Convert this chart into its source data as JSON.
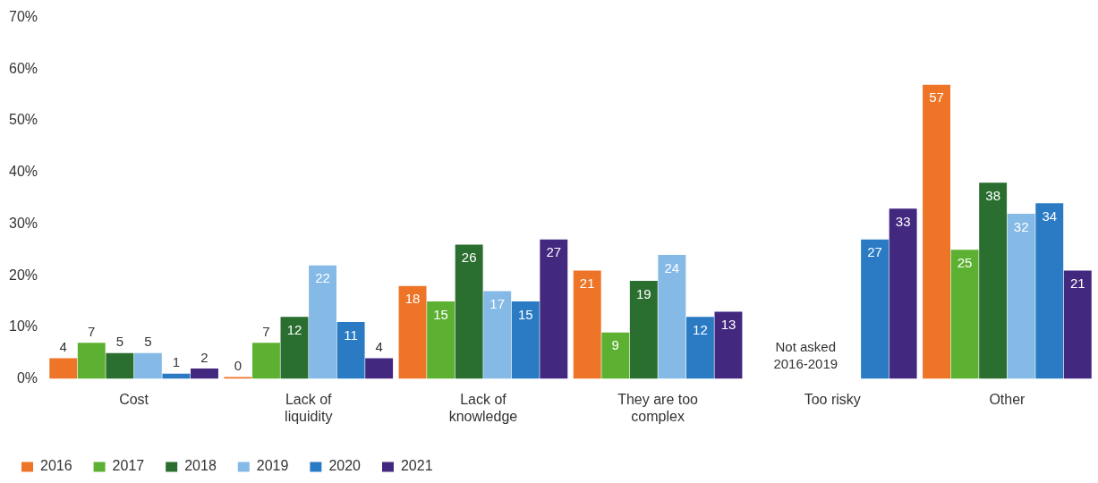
{
  "chart_data": {
    "type": "bar",
    "categories": [
      "Cost",
      "Lack of liquidity",
      "Lack of knowledge",
      "They are too complex",
      "Too risky",
      "Other"
    ],
    "series": [
      {
        "name": "2016",
        "color": "#ee7428",
        "values": [
          4,
          0,
          18,
          21,
          null,
          57
        ]
      },
      {
        "name": "2017",
        "color": "#5db132",
        "values": [
          7,
          7,
          15,
          9,
          null,
          25
        ]
      },
      {
        "name": "2018",
        "color": "#2a6e30",
        "values": [
          5,
          12,
          26,
          19,
          null,
          38
        ]
      },
      {
        "name": "2019",
        "color": "#85b9e6",
        "values": [
          5,
          22,
          17,
          24,
          null,
          32
        ]
      },
      {
        "name": "2020",
        "color": "#2a7bc4",
        "values": [
          1,
          11,
          15,
          12,
          27,
          34
        ]
      },
      {
        "name": "2021",
        "color": "#42287f",
        "values": [
          2,
          4,
          27,
          13,
          33,
          21
        ]
      }
    ],
    "ylim": [
      0,
      70
    ],
    "yticks": [
      {
        "value": 0,
        "label": "0%"
      },
      {
        "value": 10,
        "label": "10%"
      },
      {
        "value": 20,
        "label": "20%"
      },
      {
        "value": 30,
        "label": "30%"
      },
      {
        "value": 40,
        "label": "40%"
      },
      {
        "value": 50,
        "label": "50%"
      },
      {
        "value": 60,
        "label": "60%"
      },
      {
        "value": 70,
        "label": "70%"
      }
    ],
    "annotations": [
      "Not asked 2016-2019"
    ],
    "data_labels": true,
    "grid": false,
    "legend": "bottom left"
  }
}
